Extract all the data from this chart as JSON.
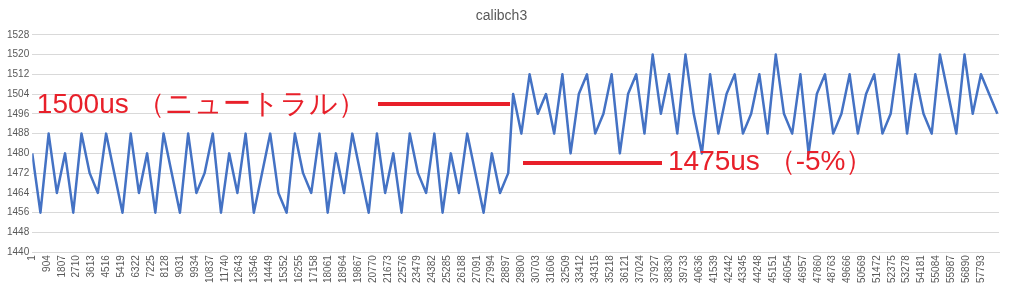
{
  "chart_data": {
    "type": "line",
    "title": "calibch3",
    "x": [
      1,
      500,
      1000,
      1500,
      2000,
      2500,
      3000,
      3500,
      4000,
      4500,
      5000,
      5500,
      6000,
      6500,
      7000,
      7500,
      8000,
      8500,
      9000,
      9500,
      10000,
      10500,
      11000,
      11500,
      12000,
      12500,
      13000,
      13500,
      14000,
      14500,
      15000,
      15500,
      16000,
      16500,
      17000,
      17500,
      18000,
      18500,
      19000,
      19500,
      20000,
      20500,
      21000,
      21500,
      22000,
      22500,
      23000,
      23500,
      24000,
      24500,
      25000,
      25500,
      26000,
      26500,
      27000,
      27500,
      28000,
      28500,
      29000,
      29300,
      29800,
      30300,
      30800,
      31300,
      31800,
      32300,
      32800,
      33300,
      33800,
      34300,
      34800,
      35300,
      35800,
      36300,
      36800,
      37300,
      37800,
      38300,
      38800,
      39300,
      39800,
      40300,
      40800,
      41300,
      41800,
      42300,
      42800,
      43300,
      43800,
      44300,
      44800,
      45300,
      45800,
      46300,
      46800,
      47300,
      47800,
      48300,
      48800,
      49300,
      49800,
      50300,
      50800,
      51300,
      51800,
      52300,
      52800,
      53300,
      53800,
      54300,
      54800,
      55300,
      55800,
      56300,
      56800,
      57300,
      57800,
      58300,
      58800
    ],
    "series": [
      {
        "color": "#4472c4",
        "values": [
          1480,
          1456,
          1488,
          1464,
          1480,
          1456,
          1488,
          1472,
          1464,
          1488,
          1472,
          1456,
          1488,
          1464,
          1480,
          1456,
          1488,
          1472,
          1456,
          1488,
          1464,
          1472,
          1488,
          1456,
          1480,
          1464,
          1488,
          1456,
          1472,
          1488,
          1464,
          1456,
          1488,
          1472,
          1464,
          1488,
          1456,
          1480,
          1464,
          1488,
          1472,
          1456,
          1488,
          1464,
          1480,
          1456,
          1488,
          1472,
          1464,
          1488,
          1456,
          1480,
          1464,
          1488,
          1472,
          1456,
          1480,
          1464,
          1472,
          1504,
          1488,
          1512,
          1496,
          1504,
          1488,
          1512,
          1480,
          1504,
          1512,
          1488,
          1496,
          1512,
          1480,
          1504,
          1512,
          1488,
          1520,
          1496,
          1512,
          1488,
          1520,
          1496,
          1480,
          1512,
          1488,
          1504,
          1512,
          1488,
          1496,
          1512,
          1488,
          1520,
          1496,
          1488,
          1512,
          1480,
          1504,
          1512,
          1488,
          1496,
          1512,
          1488,
          1504,
          1512,
          1488,
          1496,
          1520,
          1488,
          1512,
          1496,
          1488,
          1520,
          1504,
          1488,
          1520,
          1496,
          1512,
          1504,
          1496
        ]
      }
    ],
    "xlim": [
      1,
      58900
    ],
    "xticks": [
      1,
      904,
      1807,
      2710,
      3613,
      4516,
      5419,
      6322,
      7225,
      8128,
      9031,
      9934,
      10837,
      11740,
      12643,
      13546,
      14449,
      15352,
      16255,
      17158,
      18061,
      18964,
      19867,
      20770,
      21673,
      22576,
      23479,
      24382,
      25285,
      26188,
      27091,
      27994,
      28897,
      29800,
      30703,
      31606,
      32509,
      33412,
      34315,
      35218,
      36121,
      37024,
      37927,
      38830,
      39733,
      40636,
      41539,
      42442,
      43345,
      44248,
      45151,
      46054,
      46957,
      47860,
      48763,
      49666,
      50569,
      51472,
      52375,
      53278,
      54181,
      55084,
      55987,
      56890,
      57793
    ],
    "ylim": [
      1440,
      1528
    ],
    "yticks": [
      1440,
      1448,
      1456,
      1464,
      1472,
      1480,
      1488,
      1496,
      1504,
      1512,
      1520,
      1528
    ],
    "grid": "y",
    "legend": false,
    "marker": "none",
    "line_style": "solid",
    "annotations": [
      {
        "text": "1500us （ニュートラル）",
        "x": 29100,
        "y": 1500
      },
      "1475us （-5%）"
    ]
  }
}
